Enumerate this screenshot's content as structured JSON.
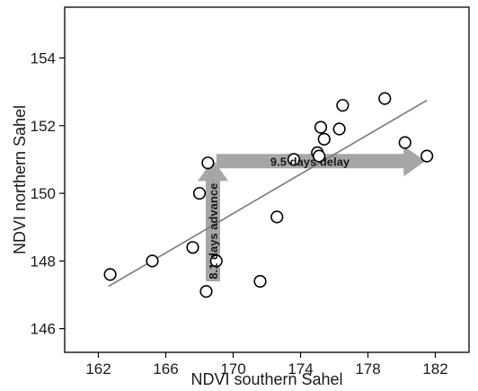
{
  "chart_data": {
    "type": "scatter",
    "title": "",
    "xlabel": "NDVI southern Sahel",
    "ylabel": "NDVI northern Sahel",
    "xlim": [
      160,
      184
    ],
    "ylim": [
      145.3,
      155.5
    ],
    "xticks": [
      162,
      166,
      170,
      174,
      178,
      182
    ],
    "yticks": [
      146,
      148,
      150,
      152,
      154
    ],
    "grid": false,
    "legend": "none",
    "points": [
      {
        "x": 162.7,
        "y": 147.6
      },
      {
        "x": 165.2,
        "y": 148.0
      },
      {
        "x": 167.6,
        "y": 148.4
      },
      {
        "x": 168.0,
        "y": 150.0
      },
      {
        "x": 168.4,
        "y": 147.1
      },
      {
        "x": 168.5,
        "y": 150.9
      },
      {
        "x": 169.0,
        "y": 148.0
      },
      {
        "x": 171.6,
        "y": 147.4
      },
      {
        "x": 172.6,
        "y": 149.3
      },
      {
        "x": 173.6,
        "y": 151.0
      },
      {
        "x": 175.0,
        "y": 151.2
      },
      {
        "x": 175.1,
        "y": 151.1
      },
      {
        "x": 175.2,
        "y": 151.95
      },
      {
        "x": 175.4,
        "y": 151.6
      },
      {
        "x": 176.3,
        "y": 151.9
      },
      {
        "x": 176.5,
        "y": 152.6
      },
      {
        "x": 179.0,
        "y": 152.8
      },
      {
        "x": 180.2,
        "y": 151.5
      },
      {
        "x": 181.5,
        "y": 151.1
      }
    ],
    "fit_line": {
      "x1": 162.6,
      "y1": 147.25,
      "x2": 181.5,
      "y2": 152.75
    },
    "arrows": [
      {
        "label": "9.5 days delay",
        "direction": "horizontal",
        "from": {
          "x": 169.0,
          "y": 150.95
        },
        "to": {
          "x": 181.4,
          "y": 150.95
        }
      },
      {
        "label": "8.1 days advance",
        "direction": "vertical",
        "from": {
          "x": 168.8,
          "y": 147.4
        },
        "to": {
          "x": 168.8,
          "y": 151.0
        }
      }
    ],
    "colors": {
      "points_stroke": "#000000",
      "fit_line": "#7a7a7a",
      "arrow_fill": "#a6a6a6",
      "axis": "#000000"
    }
  }
}
